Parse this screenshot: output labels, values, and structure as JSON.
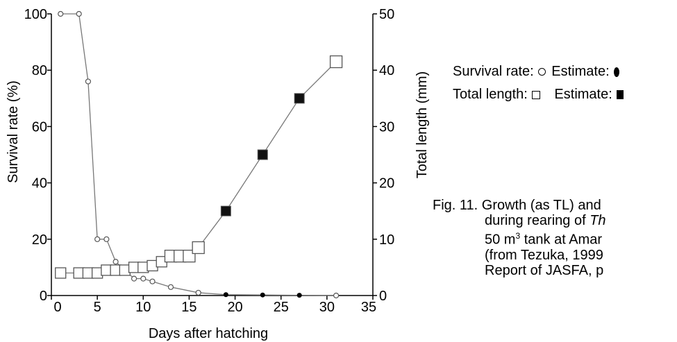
{
  "chart_data": {
    "type": "line",
    "xlabel": "Days after hatching",
    "ylabel": "Survival rate (%)",
    "y2label": "Total length (mm)",
    "xlim": [
      0,
      35
    ],
    "ylim": [
      0,
      100
    ],
    "y2lim": [
      0,
      50
    ],
    "x_ticks": [
      0,
      5,
      10,
      15,
      20,
      25,
      30,
      35
    ],
    "y_ticks": [
      0,
      20,
      40,
      60,
      80,
      100
    ],
    "y2_ticks": [
      0,
      10,
      20,
      30,
      40,
      50
    ],
    "grid": false,
    "legend_position": "right",
    "series": [
      {
        "name": "Survival rate",
        "axis": "left",
        "marker": "circle-open",
        "x": [
          1,
          3,
          4,
          5,
          6,
          7,
          8,
          9,
          10,
          11,
          13,
          16,
          31
        ],
        "y": [
          100,
          100,
          76,
          20,
          20,
          12,
          9,
          6,
          6,
          5,
          3,
          1,
          0
        ]
      },
      {
        "name": "Survival rate estimate",
        "axis": "left",
        "marker": "circle-filled",
        "x": [
          19,
          23,
          27
        ],
        "y": [
          0.3,
          0.2,
          0.1
        ]
      },
      {
        "name": "Total length",
        "axis": "right",
        "marker": "square-open",
        "x": [
          1,
          3,
          4,
          5,
          6,
          7,
          8,
          9,
          10,
          11,
          12,
          13,
          14,
          15,
          16,
          31
        ],
        "y": [
          4,
          4,
          4,
          4,
          4.5,
          4.5,
          4.5,
          5,
          5,
          5.3,
          6,
          7,
          7,
          7,
          8.5,
          41.5
        ]
      },
      {
        "name": "Total length estimate",
        "axis": "right",
        "marker": "square-filled",
        "x": [
          19,
          23,
          27
        ],
        "y": [
          15,
          25,
          35
        ]
      }
    ],
    "line_path": {
      "survival": [
        [
          1,
          100
        ],
        [
          3,
          100
        ],
        [
          4,
          76
        ],
        [
          5,
          20
        ],
        [
          6,
          20
        ],
        [
          7,
          12
        ],
        [
          8,
          9
        ],
        [
          9,
          6
        ],
        [
          10,
          6
        ],
        [
          11,
          5
        ],
        [
          13,
          3
        ],
        [
          16,
          1
        ],
        [
          19,
          0.3
        ],
        [
          23,
          0.2
        ],
        [
          27,
          0.1
        ],
        [
          31,
          0
        ]
      ],
      "length": [
        [
          1,
          4
        ],
        [
          3,
          4
        ],
        [
          4,
          4
        ],
        [
          5,
          4
        ],
        [
          6,
          4.5
        ],
        [
          7,
          4.5
        ],
        [
          8,
          4.5
        ],
        [
          9,
          5
        ],
        [
          10,
          5
        ],
        [
          11,
          5.3
        ],
        [
          12,
          6
        ],
        [
          13,
          7
        ],
        [
          14,
          7
        ],
        [
          15,
          7
        ],
        [
          16,
          8.5
        ],
        [
          19,
          15
        ],
        [
          23,
          25
        ],
        [
          27,
          35
        ],
        [
          31,
          41.5
        ]
      ]
    }
  },
  "legend": {
    "survival_label": "Survival rate:",
    "length_label": "Total length:",
    "estimate_label": "Estimate:"
  },
  "caption": {
    "lines": [
      "Fig. 11. Growth (as TL) and",
      "during rearing of Th",
      "50 m3 tank at Amar",
      "(from Tezuka, 1999",
      "Report of JASFA, p"
    ]
  }
}
